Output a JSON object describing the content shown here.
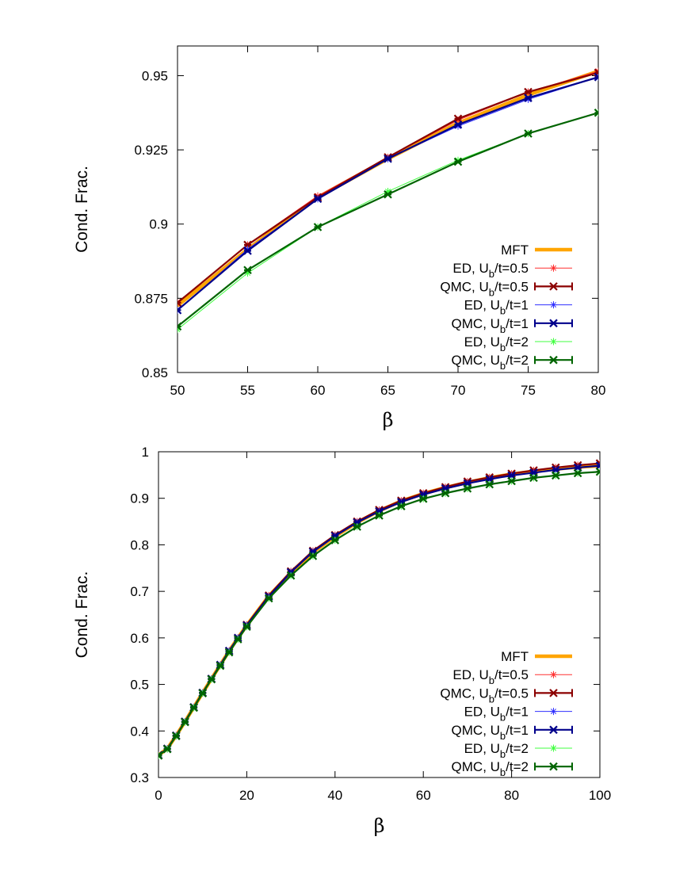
{
  "colors": {
    "MFT": "#ffa500",
    "ED, U_b/t=0.5": "#ff3030",
    "QMC, U_b/t=0.5": "#8b0000",
    "ED, U_b/t=1": "#3030ff",
    "QMC, U_b/t=1": "#00008b",
    "ED, U_b/t=2": "#40ff40",
    "QMC, U_b/t=2": "#006400"
  },
  "chart_data": [
    {
      "type": "line",
      "xlabel": "β",
      "ylabel": "Cond. Frac.",
      "xlim": [
        50,
        80
      ],
      "ylim": [
        0.85,
        0.96
      ],
      "xticks": [
        "50",
        "55",
        "60",
        "65",
        "70",
        "75",
        "80"
      ],
      "yticks": [
        "0.85",
        "0.875",
        "0.9",
        "0.925",
        "0.95"
      ],
      "legend_position": "bottom-right",
      "legend": [
        {
          "label": "MFT",
          "sub": "",
          "after": ""
        },
        {
          "label": "ED, U",
          "sub": "b",
          "after": "/t=0.5"
        },
        {
          "label": "QMC, U",
          "sub": "b",
          "after": "/t=0.5"
        },
        {
          "label": "ED, U",
          "sub": "b",
          "after": "/t=1"
        },
        {
          "label": "QMC, U",
          "sub": "b",
          "after": "/t=1"
        },
        {
          "label": "ED, U",
          "sub": "b",
          "after": "/t=2"
        },
        {
          "label": "QMC, U",
          "sub": "b",
          "after": "/t=2"
        }
      ],
      "x": [
        50,
        55,
        60,
        65,
        70,
        75,
        80
      ],
      "series": [
        {
          "name": "MFT",
          "values": [
            0.8725,
            0.8915,
            0.909,
            0.922,
            0.934,
            0.9435,
            0.9515
          ]
        },
        {
          "name": "ED, U_b/t=0.5",
          "values": [
            0.8735,
            0.893,
            0.9095,
            0.9225,
            0.935,
            0.9445,
            0.9515
          ]
        },
        {
          "name": "QMC, U_b/t=0.5",
          "values": [
            0.8735,
            0.893,
            0.909,
            0.9225,
            0.9355,
            0.9445,
            0.951
          ]
        },
        {
          "name": "ED, U_b/t=1",
          "values": [
            0.871,
            0.8915,
            0.9085,
            0.922,
            0.933,
            0.942,
            0.9495
          ]
        },
        {
          "name": "QMC, U_b/t=1",
          "values": [
            0.871,
            0.891,
            0.9085,
            0.922,
            0.9335,
            0.9425,
            0.9495
          ]
        },
        {
          "name": "ED, U_b/t=2",
          "values": [
            0.8645,
            0.8835,
            0.899,
            0.911,
            0.9215,
            0.9305,
            0.9375
          ]
        },
        {
          "name": "QMC, U_b/t=2",
          "values": [
            0.8655,
            0.8845,
            0.899,
            0.91,
            0.921,
            0.9305,
            0.9375
          ]
        }
      ]
    },
    {
      "type": "line",
      "xlabel": "β",
      "ylabel": "Cond. Frac.",
      "xlim": [
        0,
        100
      ],
      "ylim": [
        0.3,
        1.0
      ],
      "xticks": [
        "0",
        "20",
        "40",
        "60",
        "80",
        "100"
      ],
      "yticks": [
        "0.3",
        "0.4",
        "0.5",
        "0.6",
        "0.7",
        "0.8",
        "0.9",
        "1"
      ],
      "legend_position": "bottom-right",
      "legend": [
        {
          "label": "MFT",
          "sub": "",
          "after": ""
        },
        {
          "label": "ED, U",
          "sub": "b",
          "after": "/t=0.5"
        },
        {
          "label": "QMC, U",
          "sub": "b",
          "after": "/t=0.5"
        },
        {
          "label": "ED, U",
          "sub": "b",
          "after": "/t=1"
        },
        {
          "label": "QMC, U",
          "sub": "b",
          "after": "/t=1"
        },
        {
          "label": "ED, U",
          "sub": "b",
          "after": "/t=2"
        },
        {
          "label": "QMC, U",
          "sub": "b",
          "after": "/t=2"
        }
      ],
      "x": [
        0,
        2,
        4,
        6,
        8,
        10,
        12,
        14,
        16,
        18,
        20,
        25,
        30,
        35,
        40,
        45,
        50,
        55,
        60,
        65,
        70,
        75,
        80,
        85,
        90,
        95,
        100
      ],
      "series": [
        {
          "name": "MFT",
          "values": [
            0.348,
            0.362,
            0.39,
            0.42,
            0.451,
            0.482,
            0.512,
            0.542,
            0.572,
            0.6,
            0.627,
            0.69,
            0.74,
            0.784,
            0.818,
            0.848,
            0.873,
            0.894,
            0.91,
            0.923,
            0.934,
            0.944,
            0.952,
            0.958,
            0.963,
            0.967,
            0.97
          ]
        },
        {
          "name": "ED, U_b/t=0.5",
          "values": [
            0.348,
            0.362,
            0.39,
            0.42,
            0.451,
            0.482,
            0.512,
            0.542,
            0.572,
            0.6,
            0.628,
            0.691,
            0.743,
            0.787,
            0.821,
            0.85,
            0.875,
            0.895,
            0.911,
            0.924,
            0.936,
            0.945,
            0.953,
            0.96,
            0.966,
            0.971,
            0.975
          ]
        },
        {
          "name": "QMC, U_b/t=0.5",
          "values": [
            0.348,
            0.362,
            0.39,
            0.42,
            0.451,
            0.482,
            0.512,
            0.542,
            0.572,
            0.6,
            0.628,
            0.691,
            0.743,
            0.787,
            0.821,
            0.85,
            0.875,
            0.895,
            0.911,
            0.924,
            0.936,
            0.945,
            0.953,
            0.96,
            0.966,
            0.971,
            0.975
          ]
        },
        {
          "name": "ED, U_b/t=1",
          "values": [
            0.348,
            0.362,
            0.39,
            0.42,
            0.451,
            0.482,
            0.512,
            0.542,
            0.572,
            0.6,
            0.627,
            0.689,
            0.741,
            0.785,
            0.819,
            0.848,
            0.872,
            0.892,
            0.908,
            0.921,
            0.932,
            0.941,
            0.949,
            0.955,
            0.961,
            0.966,
            0.97
          ]
        },
        {
          "name": "QMC, U_b/t=1",
          "values": [
            0.348,
            0.362,
            0.39,
            0.42,
            0.451,
            0.482,
            0.512,
            0.542,
            0.572,
            0.6,
            0.627,
            0.689,
            0.741,
            0.785,
            0.819,
            0.848,
            0.872,
            0.892,
            0.908,
            0.921,
            0.932,
            0.941,
            0.949,
            0.955,
            0.961,
            0.966,
            0.97
          ]
        },
        {
          "name": "ED, U_b/t=2",
          "values": [
            0.347,
            0.361,
            0.389,
            0.419,
            0.45,
            0.481,
            0.511,
            0.54,
            0.569,
            0.597,
            0.624,
            0.685,
            0.734,
            0.776,
            0.81,
            0.839,
            0.863,
            0.883,
            0.899,
            0.911,
            0.921,
            0.93,
            0.937,
            0.944,
            0.949,
            0.954,
            0.957
          ]
        },
        {
          "name": "QMC, U_b/t=2",
          "values": [
            0.347,
            0.361,
            0.389,
            0.419,
            0.45,
            0.481,
            0.511,
            0.54,
            0.569,
            0.597,
            0.624,
            0.685,
            0.734,
            0.776,
            0.81,
            0.839,
            0.863,
            0.883,
            0.899,
            0.911,
            0.921,
            0.93,
            0.937,
            0.944,
            0.949,
            0.954,
            0.957
          ]
        }
      ]
    }
  ]
}
